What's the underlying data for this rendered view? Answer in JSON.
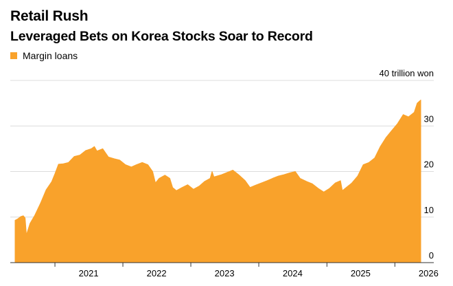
{
  "title": "Retail Rush",
  "subtitle": "Leveraged Bets on Korea Stocks Soar to Record",
  "chart_data": {
    "type": "area",
    "title": "Retail Rush",
    "subtitle": "Leveraged Bets on Korea Stocks Soar to Record",
    "unit_label": "40 trillion won",
    "xlabel": "",
    "ylabel": "",
    "ylim": [
      0,
      40
    ],
    "xlim": [
      "2020-06-01",
      "2026-05-20"
    ],
    "y_ticks": [
      0,
      10,
      20,
      30,
      40
    ],
    "y_tick_labels": [
      "0",
      "10",
      "20",
      "30",
      "40 trillion won"
    ],
    "x_tick_labels": [
      "2021",
      "2022",
      "2023",
      "2024",
      "2025",
      "2026"
    ],
    "grid": true,
    "legend_position": "top-left",
    "colors": {
      "series": "#f9a22b",
      "grid": "#dcdcdc",
      "baseline": "#333333"
    },
    "series": [
      {
        "name": "Margin loans",
        "points": [
          [
            "2020-06-01",
            9.3
          ],
          [
            "2020-06-15",
            9.6
          ],
          [
            "2020-07-01",
            10.1
          ],
          [
            "2020-07-15",
            10.3
          ],
          [
            "2020-07-25",
            9.8
          ],
          [
            "2020-08-01",
            6.1
          ],
          [
            "2020-08-20",
            8.6
          ],
          [
            "2020-09-15",
            10.4
          ],
          [
            "2020-10-15",
            13.0
          ],
          [
            "2020-11-15",
            16.0
          ],
          [
            "2020-12-15",
            17.8
          ],
          [
            "2021-01-01",
            19.5
          ],
          [
            "2021-01-20",
            21.6
          ],
          [
            "2021-02-15",
            21.7
          ],
          [
            "2021-03-15",
            22.0
          ],
          [
            "2021-04-15",
            23.3
          ],
          [
            "2021-05-15",
            23.6
          ],
          [
            "2021-06-15",
            24.6
          ],
          [
            "2021-07-15",
            25.0
          ],
          [
            "2021-08-01",
            25.5
          ],
          [
            "2021-08-15",
            24.5
          ],
          [
            "2021-09-15",
            25.0
          ],
          [
            "2021-10-15",
            23.2
          ],
          [
            "2021-11-15",
            22.8
          ],
          [
            "2021-12-15",
            22.5
          ],
          [
            "2022-01-15",
            21.5
          ],
          [
            "2022-02-15",
            21.0
          ],
          [
            "2022-03-15",
            21.5
          ],
          [
            "2022-04-15",
            22.0
          ],
          [
            "2022-05-15",
            21.5
          ],
          [
            "2022-06-10",
            20.0
          ],
          [
            "2022-06-25",
            17.5
          ],
          [
            "2022-07-15",
            18.5
          ],
          [
            "2022-08-15",
            19.2
          ],
          [
            "2022-09-10",
            18.5
          ],
          [
            "2022-09-25",
            16.5
          ],
          [
            "2022-10-15",
            15.8
          ],
          [
            "2022-11-15",
            16.5
          ],
          [
            "2022-12-15",
            17.1
          ],
          [
            "2023-01-15",
            16.1
          ],
          [
            "2023-02-15",
            16.8
          ],
          [
            "2023-03-15",
            17.8
          ],
          [
            "2023-04-15",
            18.5
          ],
          [
            "2023-04-25",
            20.0
          ],
          [
            "2023-05-05",
            18.8
          ],
          [
            "2023-06-15",
            19.3
          ],
          [
            "2023-07-15",
            19.8
          ],
          [
            "2023-08-15",
            20.3
          ],
          [
            "2023-09-15",
            19.3
          ],
          [
            "2023-10-20",
            18.0
          ],
          [
            "2023-11-15",
            16.5
          ],
          [
            "2023-12-15",
            17.0
          ],
          [
            "2024-01-15",
            17.5
          ],
          [
            "2024-02-15",
            18.0
          ],
          [
            "2024-03-15",
            18.5
          ],
          [
            "2024-04-15",
            19.0
          ],
          [
            "2024-05-15",
            19.3
          ],
          [
            "2024-06-15",
            19.7
          ],
          [
            "2024-07-15",
            20.0
          ],
          [
            "2024-08-10",
            18.5
          ],
          [
            "2024-09-15",
            17.8
          ],
          [
            "2024-10-15",
            17.3
          ],
          [
            "2024-11-15",
            16.3
          ],
          [
            "2024-12-15",
            15.5
          ],
          [
            "2025-01-15",
            16.3
          ],
          [
            "2025-02-15",
            17.5
          ],
          [
            "2025-03-15",
            18.0
          ],
          [
            "2025-03-25",
            15.8
          ],
          [
            "2025-04-15",
            16.5
          ],
          [
            "2025-05-15",
            17.5
          ],
          [
            "2025-06-15",
            19.0
          ],
          [
            "2025-07-15",
            21.5
          ],
          [
            "2025-08-15",
            22.0
          ],
          [
            "2025-09-15",
            23.0
          ],
          [
            "2025-10-15",
            25.5
          ],
          [
            "2025-11-15",
            27.5
          ],
          [
            "2025-12-15",
            29.0
          ],
          [
            "2026-01-15",
            30.5
          ],
          [
            "2026-02-15",
            32.5
          ],
          [
            "2026-03-15",
            32.0
          ],
          [
            "2026-04-15",
            33.0
          ],
          [
            "2026-05-01",
            35.0
          ],
          [
            "2026-05-20",
            35.7
          ]
        ]
      }
    ]
  }
}
